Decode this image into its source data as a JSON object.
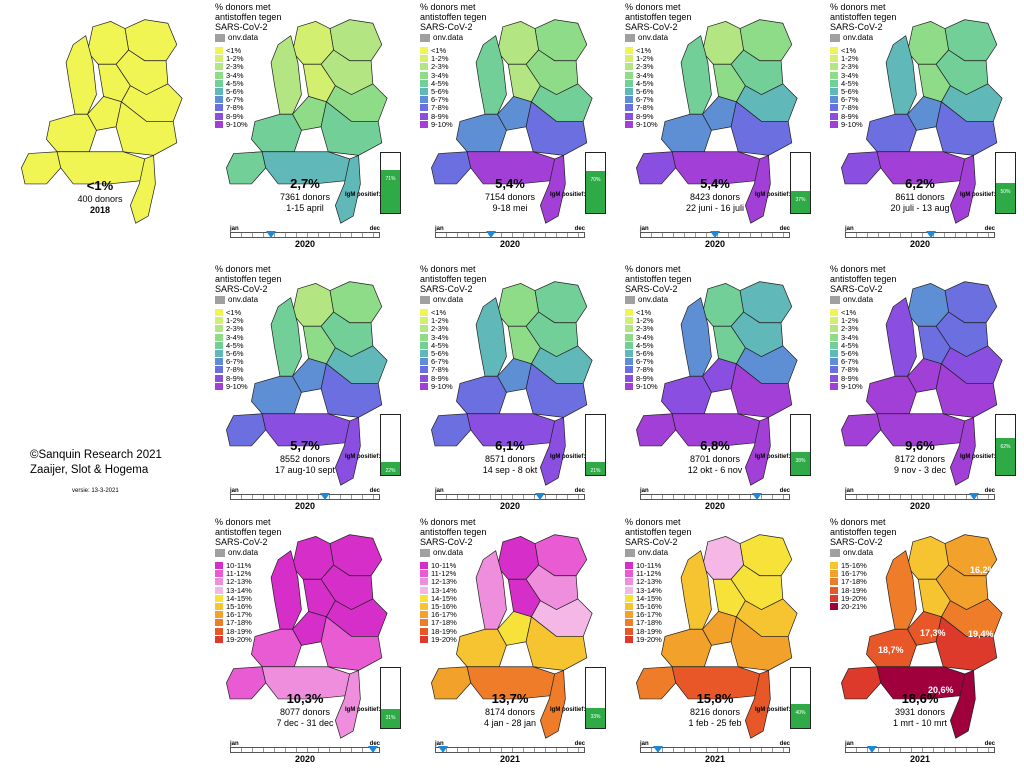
{
  "legend_title": [
    "% donors met",
    "antistoffen tegen",
    "SARS-CoV-2"
  ],
  "missing_label": "onv.data",
  "igm_label": "IgM positief:",
  "timeline_start": "jan",
  "timeline_end": "dec",
  "scale_low": {
    "labels": [
      "<1%",
      "1-2%",
      "2-3%",
      "3-4%",
      "4-5%",
      "5-6%",
      "6-7%",
      "7-8%",
      "8-9%",
      "9-10%"
    ],
    "colors": [
      "#f0f554",
      "#d2ef70",
      "#b3e683",
      "#8fdc88",
      "#72cf98",
      "#60b8b8",
      "#5e8fd4",
      "#6b6fe0",
      "#8a4fe0",
      "#a23fd6"
    ]
  },
  "scale_mid": {
    "labels": [
      "10-11%",
      "11-12%",
      "12-13%",
      "13-14%",
      "14-15%",
      "15-16%",
      "16-17%",
      "17-18%",
      "18-19%",
      "19-20%"
    ],
    "colors": [
      "#d62ec8",
      "#e85bd3",
      "#ef8edc",
      "#f5b8e6",
      "#f7e23a",
      "#f5c430",
      "#f2a12b",
      "#ee7c28",
      "#e85728",
      "#dd3a2c"
    ]
  },
  "scale_high": {
    "labels": [
      "15-16%",
      "16-17%",
      "17-18%",
      "18-19%",
      "19-20%",
      "20-21%"
    ],
    "colors": [
      "#f5c430",
      "#f2a12b",
      "#ee7c28",
      "#e85728",
      "#dd3a2c",
      "#a0003c"
    ]
  },
  "panels": [
    {
      "pct": "<1%",
      "donors": "400 donors",
      "period": "2018",
      "year": "",
      "scale": "low",
      "base": 0.8,
      "south": 0.8
    },
    {
      "pct": "2,7%",
      "donors": "7361 donors",
      "period": "1-15 april",
      "year": "2020",
      "igm": "71%",
      "igm_frac": 0.71,
      "scale": "low",
      "mark": 0.27,
      "base": 2.0,
      "south": 5.4
    },
    {
      "pct": "5,4%",
      "donors": "7154 donors",
      "period": "9-18 mei",
      "year": "2020",
      "igm": "70%",
      "igm_frac": 0.7,
      "scale": "low",
      "mark": 0.37,
      "base": 3.2,
      "south": 9.0
    },
    {
      "pct": "5,4%",
      "donors": "8423 donors",
      "period": "22 juni - 16 juli",
      "year": "2020",
      "igm": "37%",
      "igm_frac": 0.37,
      "scale": "low",
      "mark": 0.5,
      "base": 3.6,
      "south": 9.2
    },
    {
      "pct": "6,2%",
      "donors": "8611 donors",
      "period": "20 juli - 13 aug",
      "year": "2020",
      "igm": "50%",
      "igm_frac": 0.5,
      "scale": "low",
      "mark": 0.57,
      "base": 4.4,
      "south": 9.4
    },
    {
      "pct": "5,7%",
      "donors": "8552 donors",
      "period": "17 aug-10 sept",
      "year": "2020",
      "igm": "22%",
      "igm_frac": 0.22,
      "scale": "low",
      "mark": 0.63,
      "base": 3.8,
      "south": 8.8
    },
    {
      "pct": "6,1%",
      "donors": "8571 donors",
      "period": "14 sep - 8 okt",
      "year": "2020",
      "igm": "21%",
      "igm_frac": 0.21,
      "scale": "low",
      "mark": 0.7,
      "base": 4.2,
      "south": 8.9
    },
    {
      "pct": "6,8%",
      "donors": "8701 donors",
      "period": "12 okt - 6 nov",
      "year": "2020",
      "igm": "38%",
      "igm_frac": 0.38,
      "scale": "low",
      "mark": 0.78,
      "base": 5.2,
      "south": 10.8
    },
    {
      "pct": "9,6%",
      "donors": "8172 donors",
      "period": "9 nov - 3 dec",
      "year": "2020",
      "igm": "62%",
      "igm_frac": 0.62,
      "scale": "low",
      "mark": 0.86,
      "base": 7.5,
      "south": 12.0
    },
    {
      "pct": "10,3%",
      "donors": "8077 donors",
      "period": "7 dec - 31 dec",
      "year": "2020",
      "igm": "31%",
      "igm_frac": 0.31,
      "scale": "mid",
      "mark": 0.95,
      "base": 9.4,
      "south": 12.5
    },
    {
      "pct": "13,7%",
      "donors": "8174 donors",
      "period": "4 jan - 28 jan",
      "year": "2021",
      "igm": "33%",
      "igm_frac": 0.33,
      "scale": "mid",
      "mark": 0.05,
      "base": 11.4,
      "south": 17.5
    },
    {
      "pct": "15,8%",
      "donors": "8216 donors",
      "period": "1 feb - 25 feb",
      "year": "2021",
      "igm": "40%",
      "igm_frac": 0.4,
      "scale": "mid",
      "mark": 0.12,
      "base": 14.4,
      "south": 18.0
    },
    {
      "pct": "18,6%",
      "donors": "3931 donors",
      "period": "1 mrt - 10 mrt",
      "year": "2021",
      "scale": "high",
      "mark": 0.18,
      "base": 16.2,
      "south": 20.6,
      "region_labels": [
        "16,2%",
        "17,3%",
        "19,4%",
        "18,7%",
        "20,6%"
      ]
    }
  ],
  "credit_lines": [
    "Sanquin Research 2021",
    "Zaaijer, Slot & Hogema"
  ],
  "copyright_symbol": "©",
  "version": "versie: 13-3-2021"
}
